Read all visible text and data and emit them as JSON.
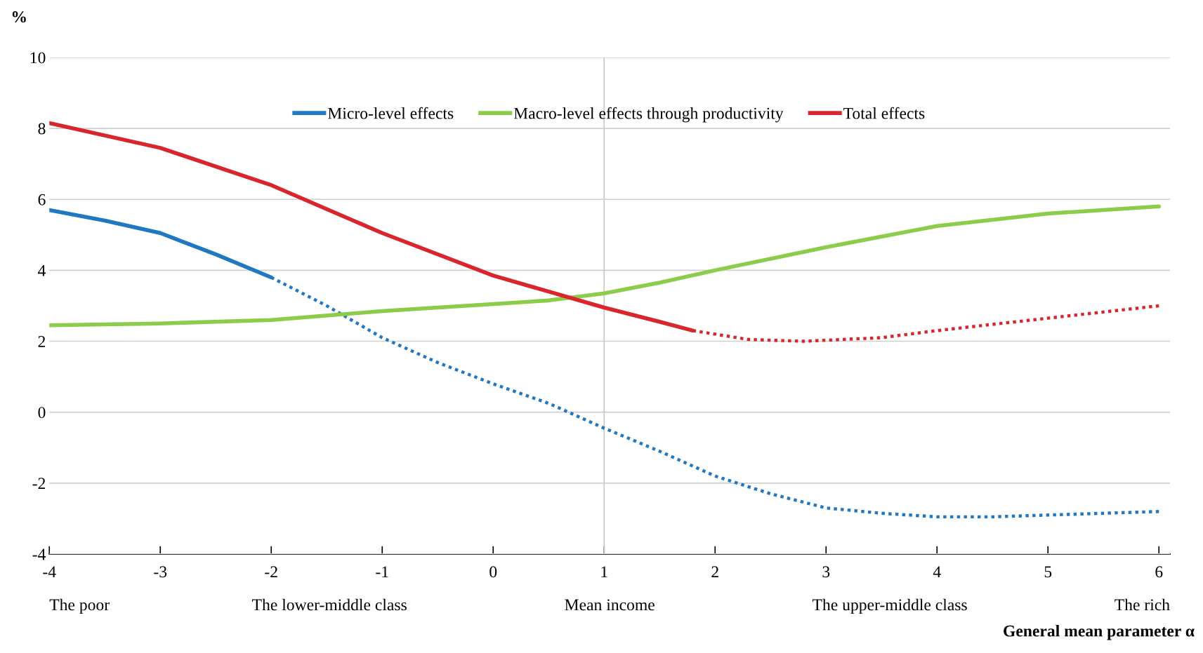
{
  "chart_data": {
    "type": "line",
    "ylabel": "%",
    "xlabel": "General mean parameter α",
    "xlim": [
      -4,
      6.1
    ],
    "xticks": [
      -4,
      -3,
      -2,
      -1,
      0,
      1,
      2,
      3,
      4,
      5,
      6
    ],
    "ylim": [
      -4,
      10
    ],
    "yticks": [
      -4,
      -2,
      0,
      2,
      4,
      6,
      8,
      10
    ],
    "grid": "y",
    "legend": "top",
    "ref_lines": [
      {
        "axis": "x",
        "value": 1,
        "color": "#c8c8c8"
      }
    ],
    "annotations": [
      "The poor",
      "The lower-middle class",
      "Mean income",
      "The upper-middle class",
      "The rich"
    ],
    "series": [
      {
        "name": "Micro-level effects",
        "color": "#1f78c1",
        "line_style": "solid",
        "x": [
          -4,
          -3.5,
          -3,
          -2.5,
          -2
        ],
        "values": [
          5.7,
          5.4,
          5.05,
          4.45,
          3.8
        ]
      },
      {
        "color": "#1f78c1",
        "line_style": "dotted",
        "x": [
          -2,
          -1.5,
          -1,
          -0.5,
          0,
          0.5,
          1,
          1.5,
          2,
          2.5,
          3,
          3.5,
          4,
          4.5,
          5,
          5.5,
          6
        ],
        "values": [
          3.8,
          3.0,
          2.1,
          1.4,
          0.8,
          0.25,
          -0.45,
          -1.1,
          -1.8,
          -2.3,
          -2.7,
          -2.85,
          -2.95,
          -2.95,
          -2.9,
          -2.85,
          -2.8
        ]
      },
      {
        "name": "Macro-level effects through productivity",
        "color": "#8ccc4a",
        "line_style": "solid",
        "x": [
          -4,
          -3,
          -2,
          -1,
          0,
          0.5,
          1,
          1.5,
          2,
          3,
          4,
          5,
          6
        ],
        "values": [
          2.45,
          2.5,
          2.6,
          2.85,
          3.05,
          3.15,
          3.35,
          3.65,
          4.0,
          4.65,
          5.25,
          5.6,
          5.8
        ]
      },
      {
        "name": "Total effects",
        "color": "#d9262c",
        "line_style": "solid",
        "x": [
          -4,
          -3,
          -2,
          -1,
          0,
          1,
          1.5,
          1.8
        ],
        "values": [
          8.15,
          7.45,
          6.4,
          5.05,
          3.85,
          2.95,
          2.55,
          2.3
        ]
      },
      {
        "color": "#d9262c",
        "line_style": "dotted",
        "x": [
          1.8,
          2.3,
          2.8,
          3.5,
          4,
          5,
          6
        ],
        "values": [
          2.3,
          2.05,
          2.0,
          2.1,
          2.3,
          2.65,
          3.0
        ]
      }
    ]
  }
}
